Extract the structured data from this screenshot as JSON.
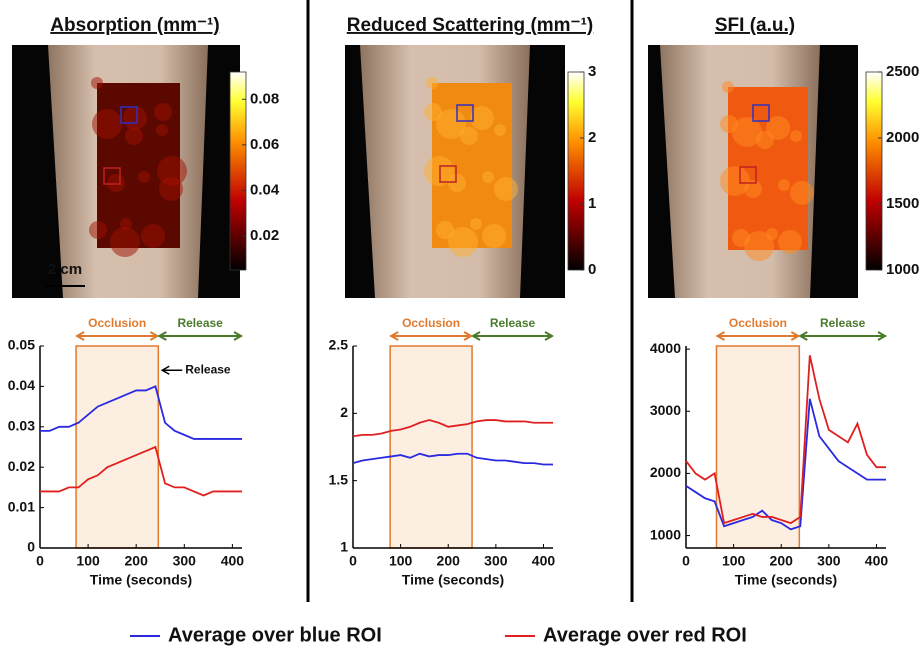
{
  "panels": [
    {
      "title": "Absorption (mm⁻¹)",
      "scale_bar": "2 cm",
      "colorbar": {
        "lim": [
          0.005,
          0.092
        ],
        "ticks": [
          0.02,
          0.04,
          0.06,
          0.08
        ]
      }
    },
    {
      "title": "Reduced Scattering (mm⁻¹)",
      "colorbar": {
        "lim": [
          0,
          3
        ],
        "ticks": [
          0,
          1,
          2,
          3
        ]
      }
    },
    {
      "title": "SFI (a.u.)",
      "colorbar": {
        "lim": [
          1000,
          2500
        ],
        "ticks": [
          1000,
          1500,
          2000,
          2500
        ]
      }
    }
  ],
  "chart_data": [
    {
      "type": "line",
      "x_label": "Time (seconds)",
      "xlim": [
        0,
        420
      ],
      "xticks": [
        0,
        100,
        200,
        300,
        400
      ],
      "ylim": [
        0,
        0.05
      ],
      "yticks": [
        0,
        0.01,
        0.02,
        0.03,
        0.04,
        0.05
      ],
      "spans": [
        {
          "label": "Occlusion",
          "range": [
            75,
            246
          ],
          "color": "#e07a2e"
        },
        {
          "label": "Release",
          "range": [
            246,
            420
          ],
          "color": "#4a7a2c"
        }
      ],
      "annotation": {
        "text": "Release",
        "x": 250,
        "y": 0.044
      },
      "x": [
        0,
        20,
        40,
        60,
        80,
        100,
        120,
        140,
        160,
        180,
        200,
        220,
        240,
        260,
        280,
        300,
        320,
        340,
        360,
        380,
        400,
        420
      ],
      "series": [
        {
          "name": "Average over blue ROI",
          "color": "#2a2ae0",
          "values": [
            0.029,
            0.029,
            0.03,
            0.03,
            0.031,
            0.033,
            0.035,
            0.036,
            0.037,
            0.038,
            0.039,
            0.039,
            0.04,
            0.031,
            0.029,
            0.028,
            0.027,
            0.027,
            0.027,
            0.027,
            0.027,
            0.027
          ]
        },
        {
          "name": "Average over red ROI",
          "color": "#e02020",
          "values": [
            0.014,
            0.014,
            0.014,
            0.015,
            0.015,
            0.017,
            0.018,
            0.02,
            0.021,
            0.022,
            0.023,
            0.024,
            0.025,
            0.016,
            0.015,
            0.015,
            0.014,
            0.013,
            0.014,
            0.014,
            0.014,
            0.014
          ]
        }
      ]
    },
    {
      "type": "line",
      "x_label": "Time (seconds)",
      "xlim": [
        0,
        420
      ],
      "xticks": [
        0,
        100,
        200,
        300,
        400
      ],
      "ylim": [
        1,
        2.5
      ],
      "yticks": [
        1,
        1.5,
        2,
        2.5
      ],
      "spans": [
        {
          "label": "Occlusion",
          "range": [
            78,
            250
          ],
          "color": "#e07a2e"
        },
        {
          "label": "Release",
          "range": [
            250,
            420
          ],
          "color": "#4a7a2c"
        }
      ],
      "x": [
        0,
        20,
        40,
        60,
        80,
        100,
        120,
        140,
        160,
        180,
        200,
        220,
        240,
        260,
        280,
        300,
        320,
        340,
        360,
        380,
        400,
        420
      ],
      "series": [
        {
          "color": "#2a2ae0",
          "values": [
            1.63,
            1.65,
            1.66,
            1.67,
            1.68,
            1.69,
            1.67,
            1.7,
            1.68,
            1.69,
            1.69,
            1.7,
            1.7,
            1.67,
            1.66,
            1.65,
            1.65,
            1.64,
            1.63,
            1.63,
            1.62,
            1.62
          ]
        },
        {
          "color": "#e02020",
          "values": [
            1.83,
            1.84,
            1.84,
            1.85,
            1.87,
            1.88,
            1.9,
            1.93,
            1.95,
            1.93,
            1.9,
            1.91,
            1.92,
            1.94,
            1.95,
            1.95,
            1.94,
            1.94,
            1.94,
            1.93,
            1.93,
            1.93
          ]
        }
      ]
    },
    {
      "type": "line",
      "x_label": "Time (seconds)",
      "xlim": [
        0,
        420
      ],
      "xticks": [
        0,
        100,
        200,
        300,
        400
      ],
      "ylim": [
        800,
        4050
      ],
      "yticks": [
        1000,
        2000,
        3000,
        4000
      ],
      "spans": [
        {
          "label": "Occlusion",
          "range": [
            64,
            238
          ],
          "color": "#e07a2e"
        },
        {
          "label": "Release",
          "range": [
            238,
            420
          ],
          "color": "#4a7a2c"
        }
      ],
      "x": [
        0,
        20,
        40,
        60,
        80,
        100,
        120,
        140,
        160,
        180,
        200,
        220,
        240,
        260,
        280,
        300,
        320,
        340,
        360,
        380,
        400,
        420
      ],
      "series": [
        {
          "color": "#2a2ae0",
          "values": [
            1800,
            1700,
            1600,
            1550,
            1150,
            1200,
            1250,
            1300,
            1400,
            1250,
            1200,
            1100,
            1150,
            3200,
            2600,
            2400,
            2200,
            2100,
            2000,
            1900,
            1900,
            1900
          ]
        },
        {
          "color": "#e02020",
          "values": [
            2200,
            2000,
            1900,
            2000,
            1200,
            1250,
            1300,
            1350,
            1300,
            1300,
            1250,
            1200,
            1300,
            3900,
            3200,
            2700,
            2600,
            2500,
            2800,
            2300,
            2100,
            2100
          ]
        }
      ]
    }
  ]
}
